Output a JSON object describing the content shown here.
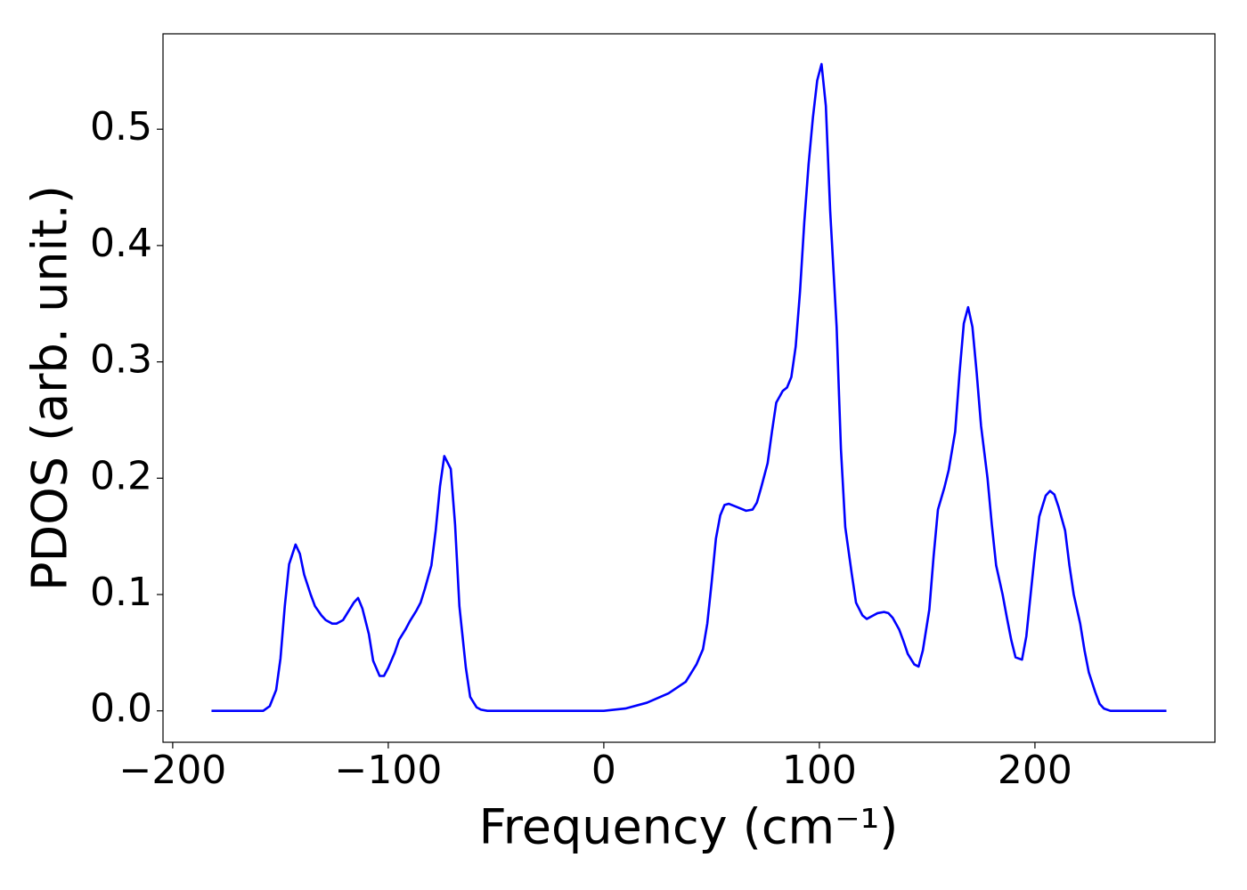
{
  "chart_data": {
    "type": "line",
    "x_label": "Frequency (cm⁻¹)",
    "y_label": "PDOS (arb. unit.)",
    "xlim": [
      -204.5,
      283.5
    ],
    "ylim": [
      -0.027,
      0.582
    ],
    "xticks": [
      {
        "value": -200,
        "label": "−200"
      },
      {
        "value": -100,
        "label": "−100"
      },
      0,
      100,
      200
    ],
    "yticks": [
      {
        "value": 0,
        "label": "0.0"
      },
      0.1,
      0.2,
      0.3,
      0.4,
      0.5
    ],
    "x": [
      -182,
      -158,
      -155,
      -152,
      -150,
      -148,
      -146,
      -143,
      -141,
      -139,
      -136,
      -134,
      -131,
      -129,
      -126,
      -124,
      -121,
      -119,
      -116,
      -114,
      -112,
      -109,
      -107,
      -104,
      -102,
      -100,
      -97,
      -95,
      -92,
      -90,
      -87,
      -85,
      -83,
      -80,
      -78,
      -76,
      -74,
      -71,
      -69,
      -67,
      -64,
      -62,
      -59,
      -57,
      -54,
      0,
      10,
      20,
      30,
      38,
      43,
      46,
      48,
      50,
      52,
      54,
      56,
      58,
      62,
      66,
      69,
      71,
      73,
      76,
      78,
      80,
      83,
      85,
      87,
      89,
      91,
      93,
      95,
      97,
      99,
      101,
      103,
      105,
      108,
      110,
      112,
      115,
      117,
      120,
      122,
      125,
      127,
      130,
      132,
      134,
      137,
      139,
      141,
      144,
      146,
      148,
      151,
      153,
      155,
      158,
      160,
      163,
      165,
      167,
      169,
      171,
      173,
      175,
      178,
      180,
      182,
      185,
      187,
      189,
      191,
      194,
      196,
      198,
      200,
      202,
      205,
      207,
      209,
      211,
      214,
      216,
      218,
      221,
      223,
      225,
      228,
      230,
      232,
      235,
      261
    ],
    "series": [
      {
        "color": "#0000ff",
        "values": [
          0,
          0,
          0.004,
          0.018,
          0.045,
          0.09,
          0.126,
          0.143,
          0.135,
          0.117,
          0.1,
          0.09,
          0.082,
          0.078,
          0.075,
          0.075,
          0.078,
          0.084,
          0.093,
          0.097,
          0.088,
          0.066,
          0.043,
          0.03,
          0.03,
          0.037,
          0.05,
          0.061,
          0.07,
          0.077,
          0.086,
          0.093,
          0.105,
          0.125,
          0.155,
          0.193,
          0.219,
          0.208,
          0.16,
          0.09,
          0.037,
          0.012,
          0.003,
          0.001,
          0,
          0,
          0.002,
          0.007,
          0.015,
          0.025,
          0.04,
          0.053,
          0.075,
          0.11,
          0.148,
          0.168,
          0.177,
          0.178,
          0.175,
          0.172,
          0.173,
          0.179,
          0.192,
          0.213,
          0.24,
          0.265,
          0.275,
          0.278,
          0.287,
          0.313,
          0.36,
          0.42,
          0.47,
          0.51,
          0.542,
          0.556,
          0.52,
          0.43,
          0.33,
          0.225,
          0.158,
          0.118,
          0.093,
          0.082,
          0.079,
          0.082,
          0.084,
          0.085,
          0.084,
          0.08,
          0.07,
          0.06,
          0.049,
          0.04,
          0.038,
          0.052,
          0.087,
          0.133,
          0.173,
          0.192,
          0.207,
          0.24,
          0.29,
          0.333,
          0.347,
          0.33,
          0.29,
          0.245,
          0.2,
          0.16,
          0.125,
          0.1,
          0.08,
          0.061,
          0.046,
          0.044,
          0.064,
          0.1,
          0.136,
          0.167,
          0.185,
          0.189,
          0.186,
          0.175,
          0.155,
          0.125,
          0.1,
          0.075,
          0.052,
          0.033,
          0.016,
          0.006,
          0.002,
          0,
          0
        ]
      }
    ]
  }
}
